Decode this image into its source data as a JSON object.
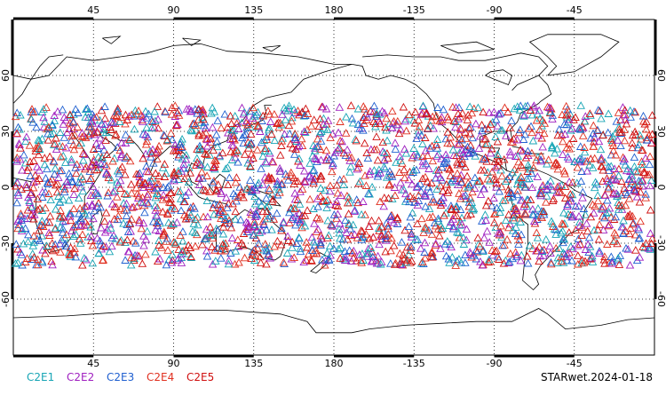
{
  "map": {
    "projection": "plate-carree",
    "central_longitude": 180,
    "top_lon_labels": [
      "45",
      "90",
      "135",
      "180",
      "-135",
      "-90",
      "-45"
    ],
    "bottom_lon_labels": [
      "45",
      "90",
      "135",
      "180",
      "-135",
      "-90",
      "-45"
    ],
    "left_lat_labels": [
      "60",
      "30",
      "0",
      "-30",
      "-60"
    ],
    "right_lat_labels": [
      "60",
      "30",
      "0",
      "-30",
      "-60"
    ],
    "grid": "dotted",
    "coastlines": true
  },
  "legend": [
    {
      "label": "C2E1",
      "color": "#17a5b5"
    },
    {
      "label": "C2E2",
      "color": "#a020c0"
    },
    {
      "label": "C2E3",
      "color": "#2060d0"
    },
    {
      "label": "C2E4",
      "color": "#e03020"
    },
    {
      "label": "C2E5",
      "color": "#d01010"
    }
  ],
  "stamp": "STARwet.2024-01-18",
  "observations": {
    "marker": "triangle",
    "lat_range": [
      -42,
      44
    ],
    "covers_longitudes": "all"
  }
}
